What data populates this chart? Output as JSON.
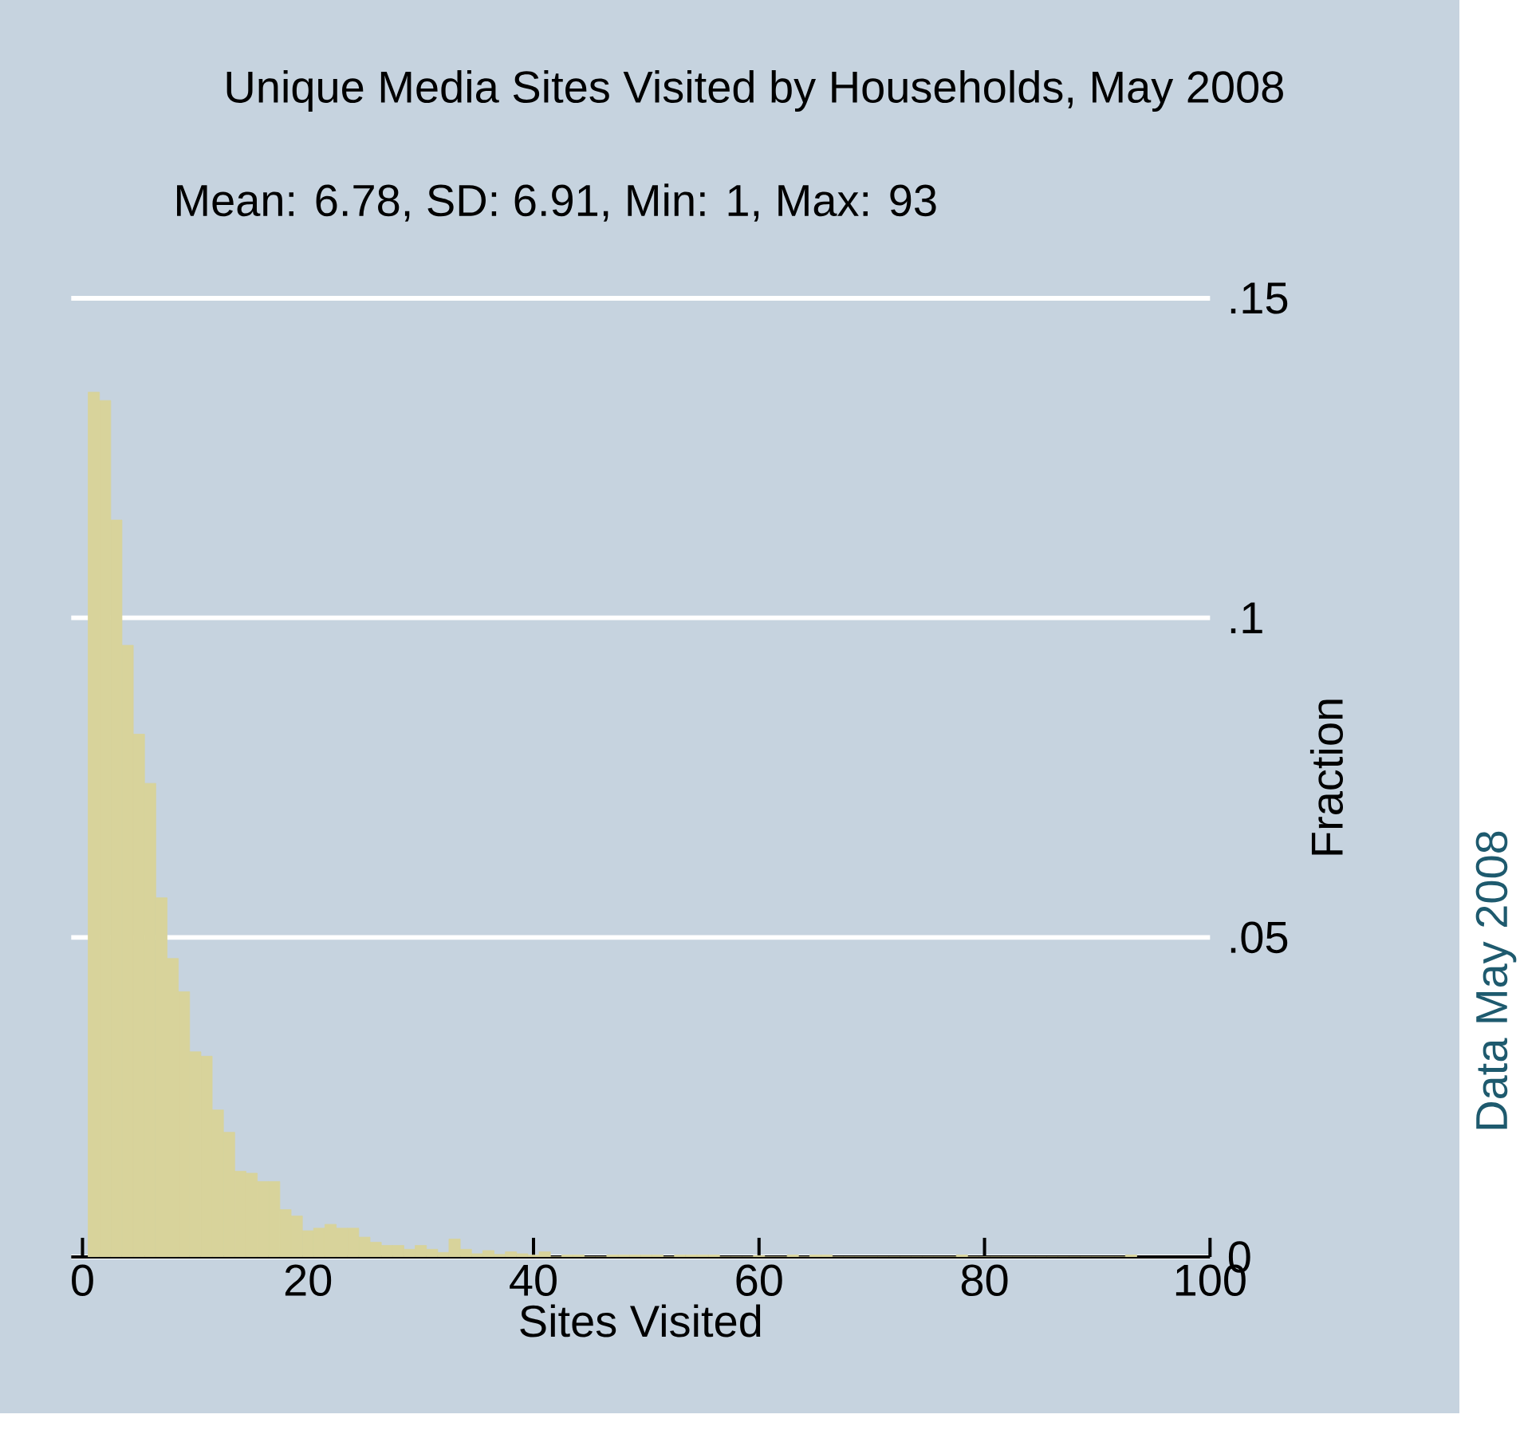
{
  "chart_data": {
    "type": "histogram",
    "title": "Unique Media Sites Visited by Households, May 2008",
    "subtitle": "Mean: 6.78, SD: 6.91, Min: 1, Max: 93",
    "xlabel": "Sites Visited",
    "ylabel": "Fraction",
    "annotations": [
      "Data May 2008"
    ],
    "bins": [
      0.5,
      1.5,
      2.5,
      3.5,
      4.5,
      5.5,
      6.5,
      7.5,
      8.5,
      9.5,
      10.5,
      11.5,
      12.5,
      13.5,
      14.5,
      15.5,
      16.5,
      17.5,
      18.5,
      19.5,
      20.5,
      21.5,
      22.5,
      23.5,
      24.5,
      25.5,
      26.5,
      27.5,
      28.5,
      29.5,
      30.5,
      31.5,
      32.5,
      33.5,
      34.5,
      35.5,
      36.5,
      37.5,
      38.5,
      39.5,
      40.5,
      41.5,
      42.5,
      43.5,
      44.5,
      45.5,
      46.5,
      47.5,
      48.5,
      49.5,
      50.5,
      51.5,
      52.5,
      53.5,
      54.5,
      55.5,
      56.5,
      57.5,
      58.5,
      59.5,
      60.5,
      61.5,
      62.5,
      63.5,
      64.5,
      65.5,
      66.5,
      67.5,
      68.5,
      69.5,
      70.5,
      71.5,
      72.5,
      73.5,
      74.5,
      75.5,
      76.5,
      77.5,
      78.5,
      79.5,
      80.5,
      81.5,
      82.5,
      83.5,
      84.5,
      85.5,
      86.5,
      87.5,
      88.5,
      89.5,
      90.5,
      91.5,
      92.5,
      93.5
    ],
    "values": [
      0.1353,
      0.134,
      0.1153,
      0.0957,
      0.0818,
      0.0741,
      0.0562,
      0.0467,
      0.0415,
      0.0321,
      0.0314,
      0.023,
      0.0195,
      0.0134,
      0.0131,
      0.0118,
      0.0118,
      0.0074,
      0.0064,
      0.0041,
      0.0045,
      0.0051,
      0.0045,
      0.0045,
      0.0031,
      0.0023,
      0.0018,
      0.0018,
      0.0012,
      0.0018,
      0.0012,
      0.0007,
      0.0028,
      0.0012,
      0.0005,
      0.001,
      0.0004,
      0.0008,
      0.0005,
      0.0003,
      0.0008,
      0,
      0.0003,
      0.0003,
      0,
      0,
      0.0003,
      0.0003,
      0.0003,
      0.0003,
      0.0003,
      0,
      0.0003,
      0.0003,
      0.0003,
      0.0003,
      0,
      0,
      0,
      0.0002,
      0,
      0,
      0.0003,
      0,
      0.0003,
      0.0003,
      0,
      0,
      0,
      0,
      0,
      0,
      0,
      0,
      0,
      0,
      0,
      0.0003,
      0,
      0,
      0,
      0,
      0,
      0,
      0,
      0,
      0,
      0,
      0,
      0,
      0,
      0,
      0.0003
    ],
    "color": "#d8d39b",
    "xlim": [
      -1,
      100
    ],
    "xticks": [
      0,
      20,
      40,
      60,
      80,
      100
    ],
    "ylim": [
      0,
      0.15
    ],
    "yticks": [
      0,
      {
        "value": 0.05,
        "label": ".05"
      },
      {
        "value": 0.1,
        "label": ".1"
      },
      {
        "value": 0.15,
        "label": ".15"
      }
    ],
    "grid": "y"
  }
}
